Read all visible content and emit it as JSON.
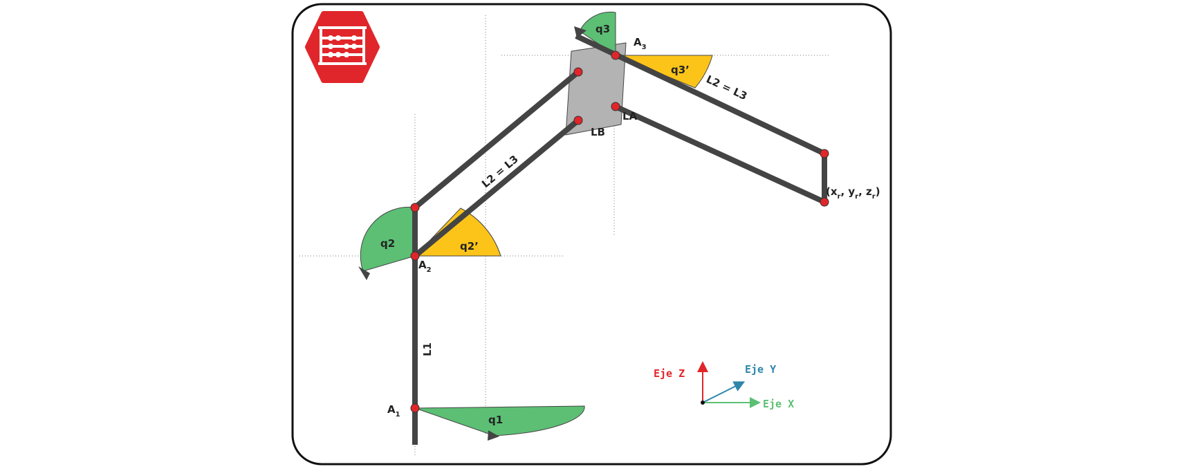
{
  "colors": {
    "link": "#444444",
    "joint": "#e0262a",
    "angle_green": "#5cbf74",
    "angle_yellow": "#fcc419",
    "plate": "#b3b3b3",
    "frame": "#111111",
    "logo": "#e0262a",
    "axis_z": "#e0262a",
    "axis_y": "#2e86ab",
    "axis_x": "#5cbf74"
  },
  "icons": {
    "logo": "abacus-icon"
  },
  "labels": {
    "q1": "q1",
    "q2": "q2",
    "q2p": "q2’",
    "q3": "q3",
    "q3p": "q3’",
    "L1": "L1",
    "L23_lower": "L2 = L3",
    "L23_upper": "L2 = L3",
    "LA": "LA",
    "LB": "LB",
    "A1": "A",
    "A1_sub": "1",
    "A2": "A",
    "A2_sub": "2",
    "A3": "A",
    "A3_sub": "3",
    "end_open": "(x",
    "end_x_sub": "r",
    "end_sep1": ", y",
    "end_y_sub": "r",
    "end_sep2": ", z",
    "end_z_sub": "r",
    "end_close": ")"
  },
  "legend": {
    "z": "Eje Z",
    "y": "Eje Y",
    "x": "Eje X"
  }
}
